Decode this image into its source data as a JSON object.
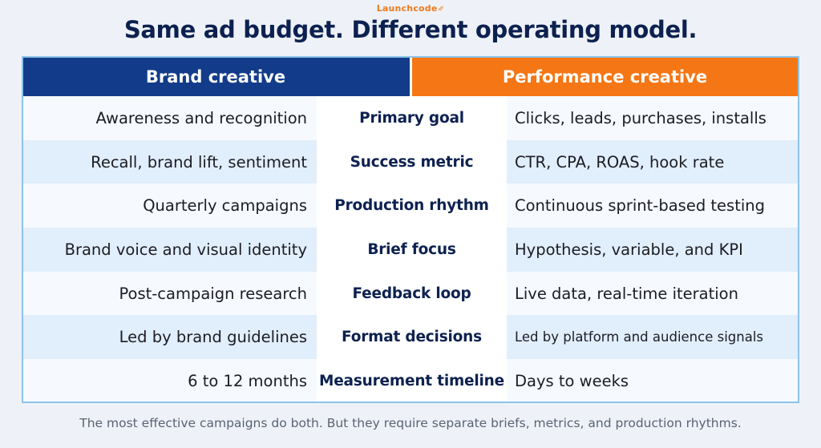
{
  "logo": {
    "text": "Launchcode",
    "mark": "✐"
  },
  "title": "Same ad budget. Different operating model.",
  "columns": {
    "brand": "Brand creative",
    "performance": "Performance creative"
  },
  "rows": [
    {
      "brand": "Awareness and recognition",
      "label": "Primary goal",
      "performance": "Clicks, leads, purchases, installs"
    },
    {
      "brand": "Recall, brand lift, sentiment",
      "label": "Success metric",
      "performance": "CTR, CPA, ROAS, hook rate"
    },
    {
      "brand": "Quarterly campaigns",
      "label": "Production rhythm",
      "performance": "Continuous sprint-based testing"
    },
    {
      "brand": "Brand voice and visual identity",
      "label": "Brief focus",
      "performance": "Hypothesis, variable, and KPI"
    },
    {
      "brand": "Post-campaign research",
      "label": "Feedback loop",
      "performance": "Live data, real-time iteration"
    },
    {
      "brand": "Led by brand guidelines",
      "label": "Format decisions",
      "performance": "Led by platform and audience signals"
    },
    {
      "brand": "6 to 12 months",
      "label": "Measurement timeline",
      "performance": "Days to weeks"
    }
  ],
  "footnote": "The most effective campaigns do both. But they require separate briefs, metrics, and production rhythms.",
  "colors": {
    "brand_header": "#123c8a",
    "performance_header": "#f57614",
    "title": "#0d2150",
    "accent_logo": "#f07a1a"
  }
}
